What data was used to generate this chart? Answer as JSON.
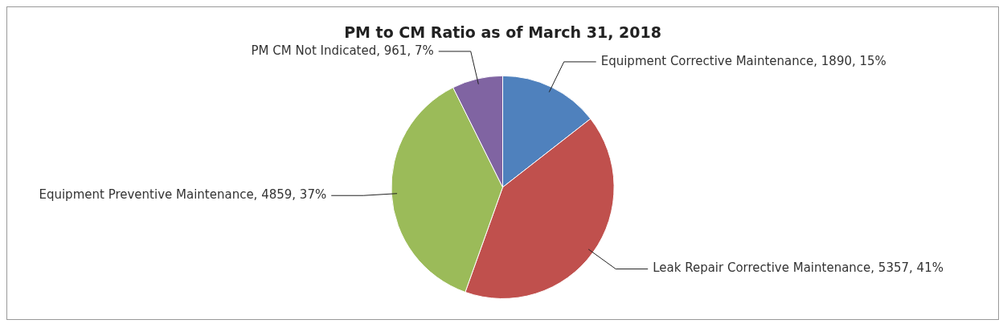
{
  "chart_data": {
    "type": "pie",
    "title": "PM to CM Ratio as of March 31, 2018",
    "categories": [
      "Equipment Corrective Maintenance",
      "Leak Repair Corrective Maintenance",
      "Equipment Preventive Maintenance",
      "PM CM Not Indicated"
    ],
    "values": [
      1890,
      5357,
      4859,
      961
    ],
    "value_labels": [
      "1890, 15%",
      "5357, 41%",
      "4859, 37%",
      "961, 7%"
    ],
    "colors": [
      "#4f81bd",
      "#c0504d",
      "#9bbb59",
      "#8064a2"
    ],
    "legend": false
  }
}
